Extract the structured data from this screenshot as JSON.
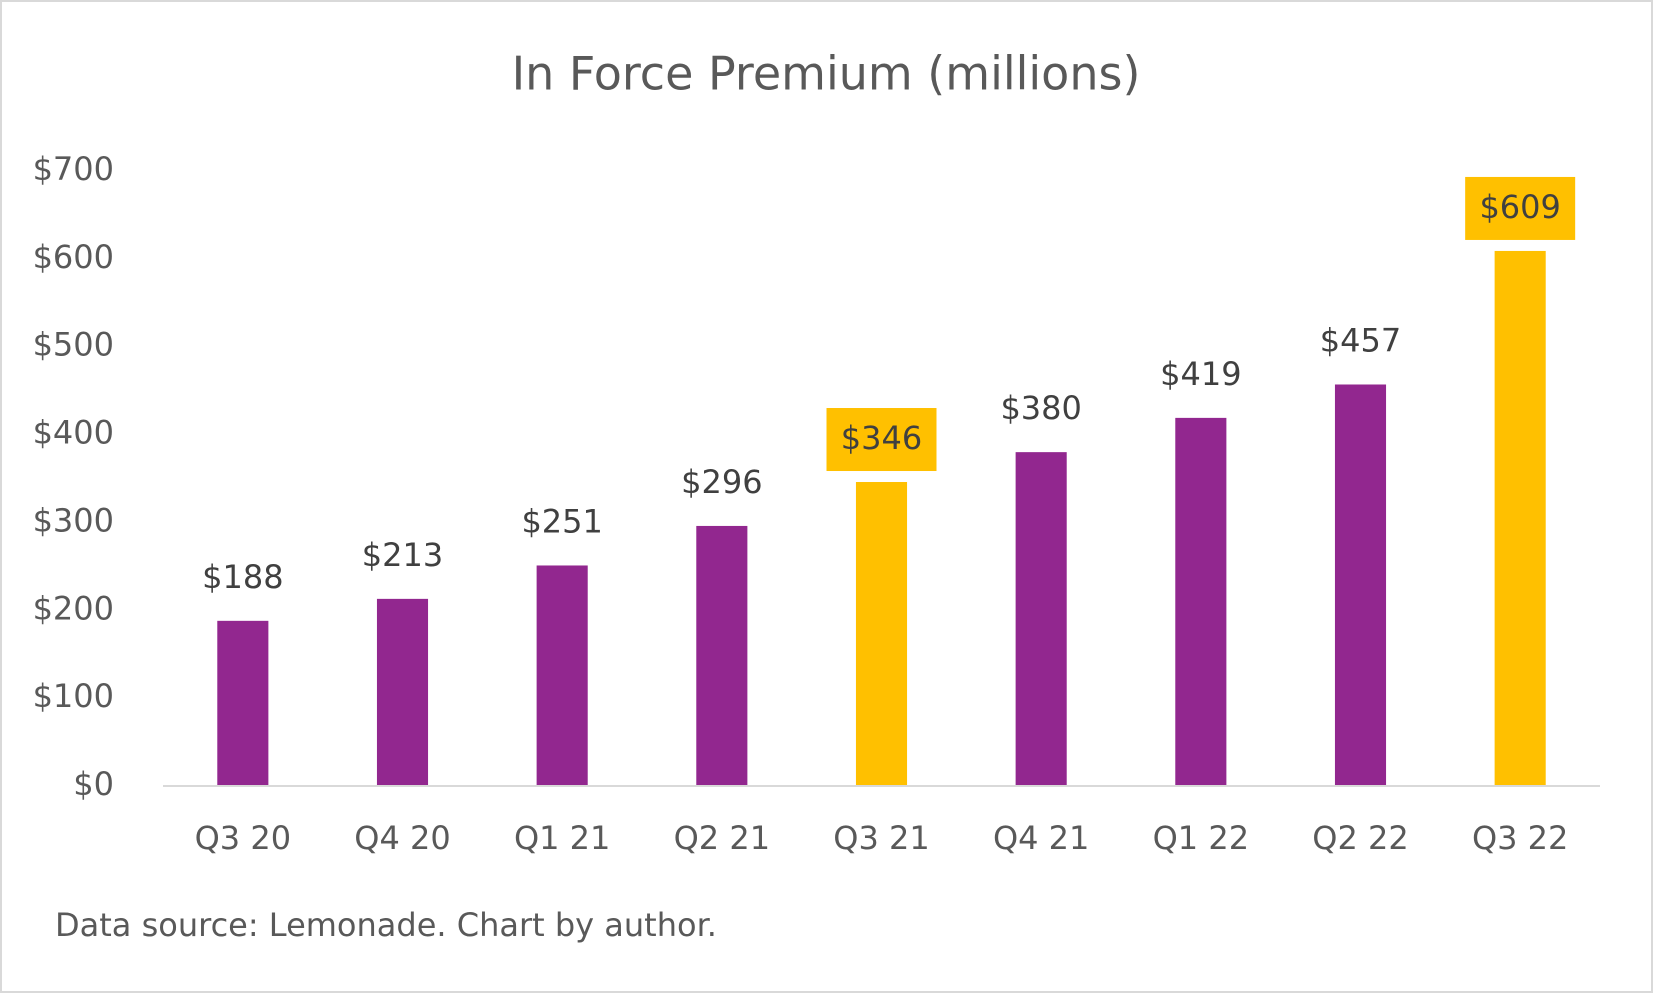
{
  "chart_data": {
    "type": "bar",
    "title": "In Force Premium (millions)",
    "categories": [
      "Q3 20",
      "Q4 20",
      "Q1 21",
      "Q2 21",
      "Q3 21",
      "Q4 21",
      "Q1 22",
      "Q2 22",
      "Q3 22"
    ],
    "values": [
      188,
      213,
      251,
      296,
      346,
      380,
      419,
      457,
      609
    ],
    "value_labels": [
      "$188",
      "$213",
      "$251",
      "$296",
      "$346",
      "$380",
      "$419",
      "$457",
      "$609"
    ],
    "color": "#92278f",
    "colors": [
      "#92278f",
      "#92278f",
      "#92278f",
      "#92278f",
      "#ffc000",
      "#92278f",
      "#92278f",
      "#92278f",
      "#ffc000"
    ],
    "ylim": [
      0,
      700
    ],
    "yticks": [
      {
        "value": 0,
        "label": "$0"
      },
      {
        "value": 100,
        "label": "$100"
      },
      {
        "value": 200,
        "label": "$200"
      },
      {
        "value": 300,
        "label": "$300"
      },
      {
        "value": 400,
        "label": "$400"
      },
      {
        "value": 500,
        "label": "$500"
      },
      {
        "value": 600,
        "label": "$600"
      },
      {
        "value": 700,
        "label": "$700"
      }
    ],
    "grid": false,
    "note": "Data source: Lemonade. Chart by author."
  }
}
